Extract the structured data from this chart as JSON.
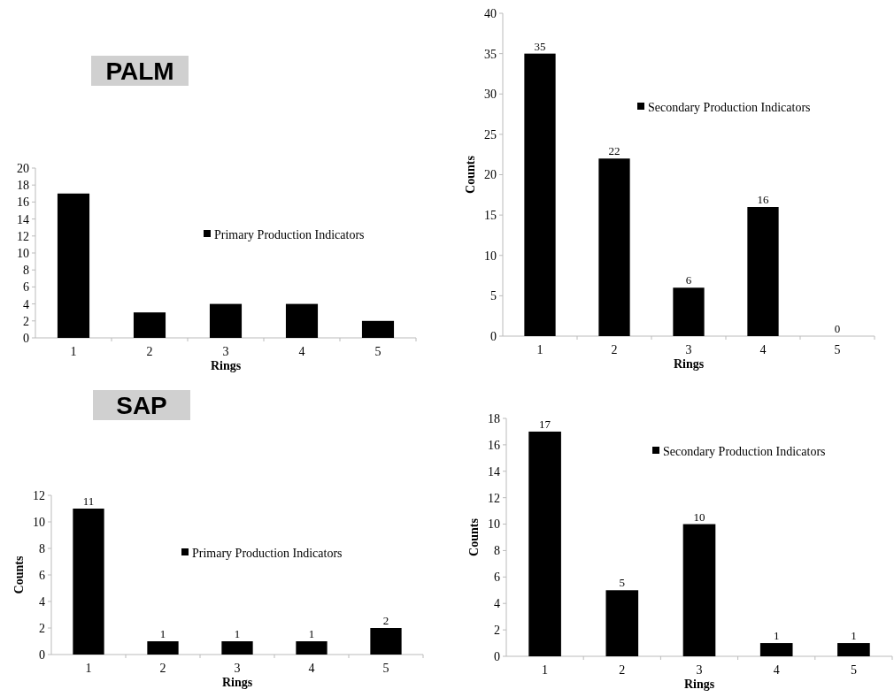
{
  "chart_data": [
    {
      "type": "bar",
      "title": "PALM",
      "xlabel": "Rings",
      "categories": [
        "1",
        "2",
        "3",
        "4",
        "5"
      ],
      "series": [
        {
          "name": "Primary Production Indicators",
          "color": "#000000",
          "values": [
            17,
            3,
            4,
            4,
            2
          ]
        }
      ],
      "ylim": [
        0,
        20
      ],
      "yticks": [
        0,
        2,
        4,
        6,
        8,
        10,
        12,
        14,
        16,
        18,
        20
      ],
      "grid": false,
      "legend": "right"
    },
    {
      "type": "bar",
      "xlabel": "Rings",
      "ylabel": "Counts",
      "categories": [
        "1",
        "2",
        "3",
        "4",
        "5"
      ],
      "series": [
        {
          "name": "Secondary Production Indicators",
          "color": "#000000",
          "values": [
            35,
            22,
            6,
            16,
            0
          ]
        }
      ],
      "ylim": [
        0,
        40
      ],
      "yticks": [
        0,
        5,
        10,
        15,
        20,
        25,
        30,
        35,
        40
      ],
      "grid": false,
      "legend": "top right",
      "data_labels": true
    },
    {
      "type": "bar",
      "title": "SAP",
      "xlabel": "Rings",
      "ylabel": "Counts",
      "categories": [
        "1",
        "2",
        "3",
        "4",
        "5"
      ],
      "series": [
        {
          "name": "Primary Production Indicators",
          "color": "#000000",
          "values": [
            11,
            1,
            1,
            1,
            2
          ]
        }
      ],
      "ylim": [
        0,
        12
      ],
      "yticks": [
        0,
        2,
        4,
        6,
        8,
        10,
        12
      ],
      "grid": false,
      "legend": "right",
      "data_labels": true
    },
    {
      "type": "bar",
      "xlabel": "Rings",
      "ylabel": "Counts",
      "categories": [
        "1",
        "2",
        "3",
        "4",
        "5"
      ],
      "series": [
        {
          "name": "Secondary Production Indicators",
          "color": "#000000",
          "values": [
            17,
            5,
            10,
            1,
            1
          ]
        }
      ],
      "ylim": [
        0,
        18
      ],
      "yticks": [
        0,
        2,
        4,
        6,
        8,
        10,
        12,
        14,
        16,
        18
      ],
      "grid": false,
      "legend": "top right",
      "data_labels": true
    }
  ]
}
